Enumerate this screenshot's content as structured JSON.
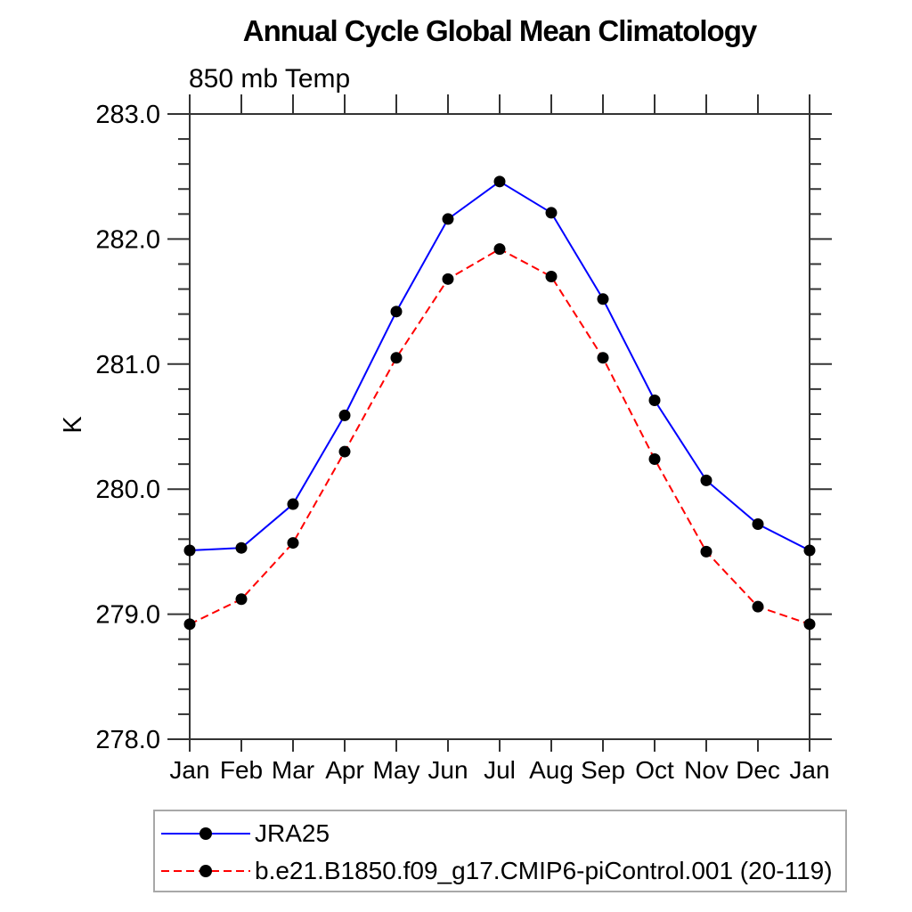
{
  "chart_data": {
    "type": "line",
    "title": "Annual Cycle Global Mean Climatology",
    "subtitle": "850 mb Temp",
    "ylabel": "K",
    "categories": [
      "Jan",
      "Feb",
      "Mar",
      "Apr",
      "May",
      "Jun",
      "Jul",
      "Aug",
      "Sep",
      "Oct",
      "Nov",
      "Dec",
      "Jan"
    ],
    "ylim": [
      278.0,
      283.0
    ],
    "ytick_values": [
      283,
      282,
      281,
      280,
      279,
      278
    ],
    "ytick_labels": [
      "283.0",
      "282.0",
      "281.0",
      "280.0",
      "279.0",
      "278.0"
    ],
    "minor_tick_step": 0.2,
    "grid": false,
    "legend_position": "bottom",
    "colors": {
      "axis": "#333333",
      "marker": "#000000",
      "jra25_line": "#0000ff",
      "model_line": "#ff0000",
      "legend_border": "#a8a8a8"
    },
    "series": [
      {
        "name": "JRA25",
        "color": "#0000ff",
        "style": "solid",
        "values": [
          279.51,
          279.53,
          279.88,
          280.59,
          281.42,
          282.16,
          282.46,
          282.21,
          281.52,
          280.71,
          280.07,
          279.72,
          279.51
        ]
      },
      {
        "name": "b.e21.B1850.f09_g17.CMIP6-piControl.001 (20-119)",
        "color": "#ff0000",
        "style": "dashed",
        "values": [
          278.92,
          279.12,
          279.57,
          280.3,
          281.05,
          281.68,
          281.92,
          281.7,
          281.05,
          280.24,
          279.5,
          279.06,
          278.92
        ]
      }
    ]
  }
}
